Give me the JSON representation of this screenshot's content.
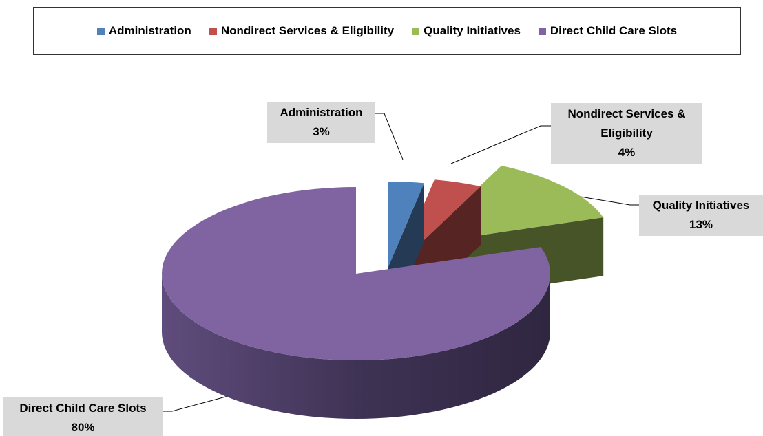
{
  "chart_data": {
    "type": "pie",
    "three_d": true,
    "categories": [
      "Administration",
      "Nondirect Services & Eligibility",
      "Quality Initiatives",
      "Direct Child Care Slots"
    ],
    "values": [
      3,
      4,
      13,
      80
    ],
    "value_labels": [
      "3%",
      "4%",
      "13%",
      "80%"
    ],
    "colors": [
      "#4f81bd",
      "#c0504d",
      "#9bbb59",
      "#8064a2"
    ],
    "legend": "top"
  }
}
